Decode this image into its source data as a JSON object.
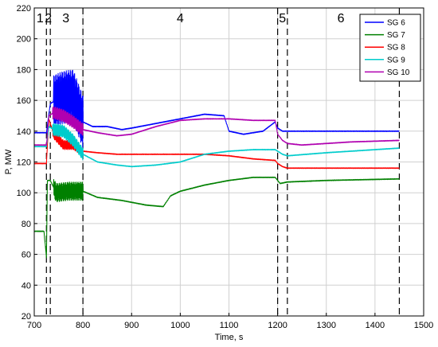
{
  "chart_data": {
    "type": "line",
    "xlabel": "Time, s",
    "ylabel": "P, MW",
    "xlim": [
      700,
      1500
    ],
    "ylim": [
      20,
      220
    ],
    "xticks": [
      700,
      800,
      900,
      1000,
      1100,
      1200,
      1300,
      1400,
      1500
    ],
    "yticks": [
      20,
      40,
      60,
      80,
      100,
      120,
      140,
      160,
      180,
      200,
      220
    ],
    "grid": true,
    "legend_position": "top-right",
    "phase_boundaries": [
      725,
      733,
      800,
      1200,
      1220,
      1450
    ],
    "phase_labels": [
      {
        "label": "1",
        "x": 712
      },
      {
        "label": "2",
        "x": 729
      },
      {
        "label": "3",
        "x": 765
      },
      {
        "label": "4",
        "x": 1000
      },
      {
        "label": "5",
        "x": 1210
      },
      {
        "label": "6",
        "x": 1330
      }
    ],
    "series": [
      {
        "name": "SG 6",
        "color": "#0000ff",
        "x": [
          700,
          725,
          733,
          745,
          760,
          780,
          800,
          820,
          850,
          880,
          900,
          950,
          1000,
          1050,
          1090,
          1100,
          1130,
          1170,
          1195,
          1200,
          1210,
          1220,
          1280,
          1350,
          1450
        ],
        "y": [
          139,
          139,
          158,
          160,
          162,
          163,
          146,
          143,
          143,
          141,
          142,
          145,
          148,
          151,
          150,
          140,
          138,
          140,
          146,
          142,
          140,
          140,
          140,
          140,
          140
        ],
        "osc": [
          [
            740,
            800,
            17
          ]
        ]
      },
      {
        "name": "SG 7",
        "color": "#008000",
        "x": [
          700,
          720,
          725,
          727,
          733,
          745,
          770,
          800,
          830,
          880,
          930,
          965,
          980,
          1000,
          1050,
          1100,
          1150,
          1195,
          1200,
          1205,
          1220,
          1300,
          1450
        ],
        "y": [
          75,
          75,
          58,
          108,
          108,
          100,
          101,
          101,
          97,
          95,
          92,
          91,
          98,
          101,
          105,
          108,
          110,
          110,
          108,
          106,
          107,
          108,
          109
        ],
        "osc": [
          [
            740,
            800,
            6
          ]
        ]
      },
      {
        "name": "SG 8",
        "color": "#ff0000",
        "x": [
          700,
          725,
          730,
          740,
          760,
          780,
          800,
          830,
          870,
          900,
          950,
          1000,
          1050,
          1100,
          1150,
          1195,
          1200,
          1210,
          1220,
          1300,
          1450
        ],
        "y": [
          119,
          119,
          148,
          138,
          131,
          131,
          127,
          126,
          125,
          125,
          125,
          125,
          125,
          124,
          122,
          121,
          119,
          117,
          116,
          116,
          116
        ],
        "osc": [
          [
            738,
            790,
            3
          ]
        ]
      },
      {
        "name": "SG 9",
        "color": "#00cccc",
        "x": [
          700,
          725,
          730,
          740,
          760,
          780,
          800,
          830,
          870,
          900,
          950,
          1000,
          1050,
          1100,
          1150,
          1195,
          1200,
          1210,
          1220,
          1260,
          1300,
          1350,
          1450
        ],
        "y": [
          130,
          130,
          143,
          141,
          140,
          134,
          125,
          120,
          118,
          117,
          118,
          120,
          125,
          127,
          128,
          128,
          127,
          125,
          124,
          125,
          126,
          127,
          129
        ],
        "osc": [
          [
            738,
            800,
            4
          ]
        ]
      },
      {
        "name": "SG 10",
        "color": "#b000b0",
        "x": [
          700,
          725,
          730,
          740,
          760,
          780,
          800,
          830,
          870,
          900,
          950,
          1000,
          1050,
          1100,
          1150,
          1195,
          1200,
          1210,
          1220,
          1250,
          1300,
          1350,
          1450
        ],
        "y": [
          131,
          131,
          150,
          152,
          150,
          146,
          141,
          139,
          137,
          138,
          143,
          147,
          148,
          148,
          147,
          147,
          138,
          134,
          132,
          131,
          132,
          133,
          134
        ],
        "osc": [
          [
            738,
            800,
            4
          ]
        ]
      }
    ]
  }
}
